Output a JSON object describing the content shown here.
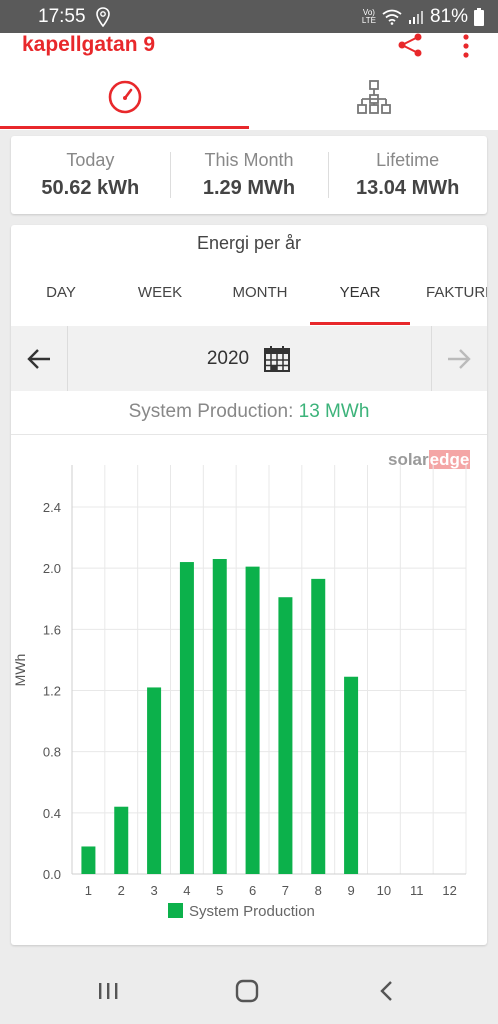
{
  "status_bar": {
    "time": "17:55",
    "battery": "81%",
    "network_top": "Vo)",
    "network_bottom": "LTE"
  },
  "header": {
    "site_name": "kapellgatan 9"
  },
  "summary": [
    {
      "label": "Today",
      "value": "50.62 kWh"
    },
    {
      "label": "This Month",
      "value": "1.29 MWh"
    },
    {
      "label": "Lifetime",
      "value": "13.04 MWh"
    }
  ],
  "period": {
    "title": "Energi per år",
    "tabs": [
      "DAY",
      "WEEK",
      "MONTH",
      "YEAR",
      "FAKTURE"
    ],
    "active_tab": "YEAR",
    "year": "2020"
  },
  "production": {
    "label": "System Production:",
    "value": "13 MWh"
  },
  "logo": {
    "part1": "solar",
    "part2": "edge"
  },
  "colors": {
    "accent": "#e8282b",
    "bar": "#0cb14b",
    "production_value": "#3cb37a"
  },
  "chart_data": {
    "type": "bar",
    "categories": [
      "1",
      "2",
      "3",
      "4",
      "5",
      "6",
      "7",
      "8",
      "9",
      "10",
      "11",
      "12"
    ],
    "series": [
      {
        "name": "System Production",
        "values": [
          0.18,
          0.44,
          1.22,
          2.04,
          2.06,
          2.01,
          1.81,
          1.93,
          1.29,
          0,
          0,
          0
        ]
      }
    ],
    "ylabel": "MWh",
    "yticks": [
      "0.0",
      "0.4",
      "0.8",
      "1.2",
      "1.6",
      "2.0",
      "2.4"
    ],
    "ylim": [
      0,
      2.4
    ],
    "grid": true,
    "legend": "bottom-center"
  }
}
